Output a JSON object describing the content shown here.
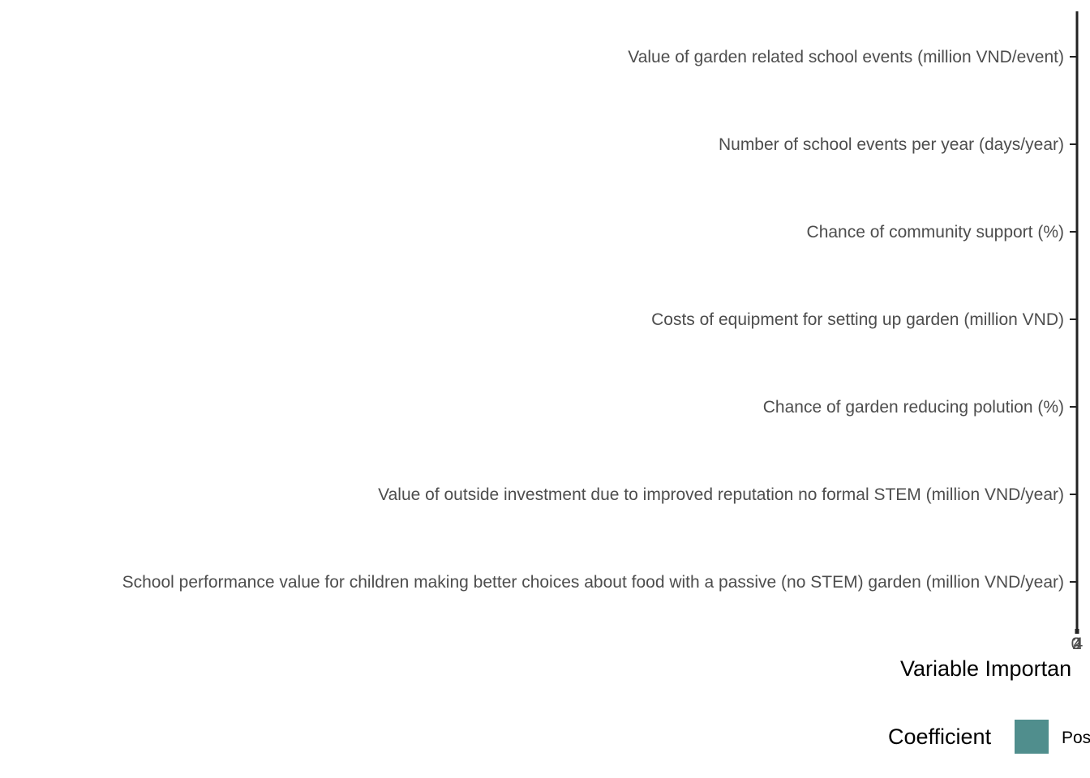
{
  "chart_data": {
    "type": "bar",
    "orientation": "horizontal",
    "categories": [
      "Value of garden related school events (million VND/event)",
      "Number of school events per year (days/year)",
      "Chance of community support (%)",
      "Costs of equipment for setting up garden (million VND)",
      "Chance of garden reducing polution (%)",
      "Value of outside investment due to improved reputation no formal STEM (million VND/year)",
      "School performance value for children making better choices about food with a passive (no STEM) garden (million VND/year)"
    ],
    "values": [
      0,
      0,
      0,
      0,
      0,
      0,
      0
    ],
    "x_ticks": [
      "0",
      "2",
      "4"
    ],
    "xlabel": "Variable Importan",
    "ylabel": "",
    "title": "",
    "grid": false,
    "legend": {
      "title": "Coefficient",
      "placement": "bottom",
      "entries": [
        {
          "label": "Pos",
          "color": "#508e8d"
        }
      ]
    },
    "colors": {
      "bar": "#508e8d",
      "axis": "#222222",
      "label": "#4d4d4d"
    }
  }
}
